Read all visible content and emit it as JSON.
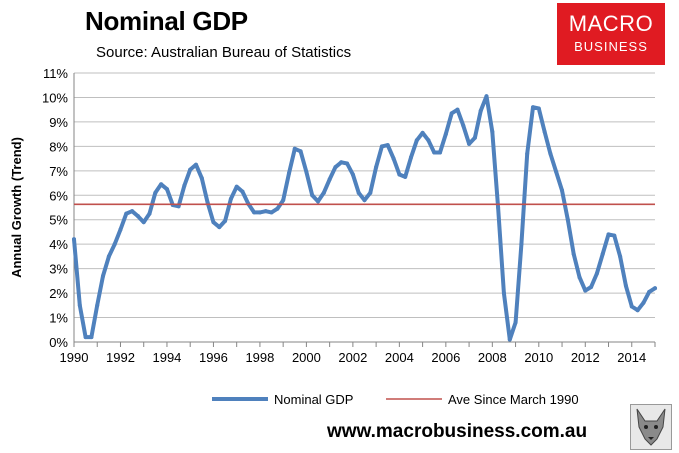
{
  "header": {
    "title": "Nominal GDP",
    "subtitle": "Source: Australian Bureau of Statistics"
  },
  "logo": {
    "line1": "MACRO",
    "line2": "BUSINESS"
  },
  "footer": {
    "url": "www.macrobusiness.com.au"
  },
  "colors": {
    "series": "#4f81bd",
    "average": "#c0504d",
    "logo_bg": "#e01b22"
  },
  "chart_data": {
    "type": "line",
    "title": "Nominal GDP",
    "xlabel": "",
    "ylabel": "Annual Growth (Trend)",
    "xlim": [
      1990,
      2015
    ],
    "ylim": [
      0,
      11
    ],
    "x_ticks": [
      1990,
      1992,
      1994,
      1996,
      1998,
      2000,
      2002,
      2004,
      2006,
      2008,
      2010,
      2012,
      2014
    ],
    "y_ticks": [
      "0%",
      "1%",
      "2%",
      "3%",
      "4%",
      "5%",
      "6%",
      "7%",
      "8%",
      "9%",
      "10%",
      "11%"
    ],
    "grid": true,
    "legend": {
      "position": "bottom",
      "entries": [
        "Nominal GDP",
        "Ave Since March 1990"
      ]
    },
    "series": [
      {
        "name": "Nominal GDP",
        "x": [
          1990,
          1990.25,
          1990.5,
          1990.75,
          1991,
          1991.25,
          1991.5,
          1991.75,
          1992,
          1992.25,
          1992.5,
          1992.75,
          1993,
          1993.25,
          1993.5,
          1993.75,
          1994,
          1994.25,
          1994.5,
          1994.75,
          1995,
          1995.25,
          1995.5,
          1995.75,
          1996,
          1996.25,
          1996.5,
          1996.75,
          1997,
          1997.25,
          1997.5,
          1997.75,
          1998,
          1998.25,
          1998.5,
          1998.75,
          1999,
          1999.25,
          1999.5,
          1999.75,
          2000,
          2000.25,
          2000.5,
          2000.75,
          2001,
          2001.25,
          2001.5,
          2001.75,
          2002,
          2002.25,
          2002.5,
          2002.75,
          2003,
          2003.25,
          2003.5,
          2003.75,
          2004,
          2004.25,
          2004.5,
          2004.75,
          2005,
          2005.25,
          2005.5,
          2005.75,
          2006,
          2006.25,
          2006.5,
          2006.75,
          2007,
          2007.25,
          2007.5,
          2007.75,
          2008,
          2008.25,
          2008.5,
          2008.75,
          2009,
          2009.25,
          2009.5,
          2009.75,
          2010,
          2010.25,
          2010.5,
          2010.75,
          2011,
          2011.25,
          2011.5,
          2011.75,
          2012,
          2012.25,
          2012.5,
          2012.75,
          2013,
          2013.25,
          2013.5,
          2013.75,
          2014,
          2014.25,
          2014.5,
          2014.75,
          2015
        ],
        "values": [
          4.2,
          1.5,
          0.2,
          0.2,
          1.5,
          2.7,
          3.5,
          4.0,
          4.6,
          5.25,
          5.35,
          5.15,
          4.9,
          5.25,
          6.1,
          6.45,
          6.25,
          5.6,
          5.55,
          6.4,
          7.05,
          7.25,
          6.7,
          5.7,
          4.9,
          4.7,
          4.95,
          5.85,
          6.35,
          6.15,
          5.65,
          5.3,
          5.3,
          5.35,
          5.3,
          5.45,
          5.8,
          6.9,
          7.9,
          7.8,
          6.95,
          6.0,
          5.75,
          6.1,
          6.65,
          7.15,
          7.35,
          7.3,
          6.85,
          6.1,
          5.8,
          6.1,
          7.15,
          8.0,
          8.05,
          7.5,
          6.85,
          6.75,
          7.55,
          8.25,
          8.55,
          8.25,
          7.75,
          7.75,
          8.5,
          9.35,
          9.5,
          8.85,
          8.1,
          8.35,
          9.45,
          10.05,
          8.6,
          5.5,
          2.0,
          0.1,
          0.8,
          4.0,
          7.7,
          9.6,
          9.55,
          8.6,
          7.7,
          6.95,
          6.2,
          5.0,
          3.6,
          2.65,
          2.1,
          2.25,
          2.8,
          3.6,
          4.4,
          4.35,
          3.5,
          2.3,
          1.45,
          1.3,
          1.6,
          2.05,
          2.2
        ]
      },
      {
        "name": "Ave Since March 1990",
        "constant": 5.63
      }
    ]
  }
}
